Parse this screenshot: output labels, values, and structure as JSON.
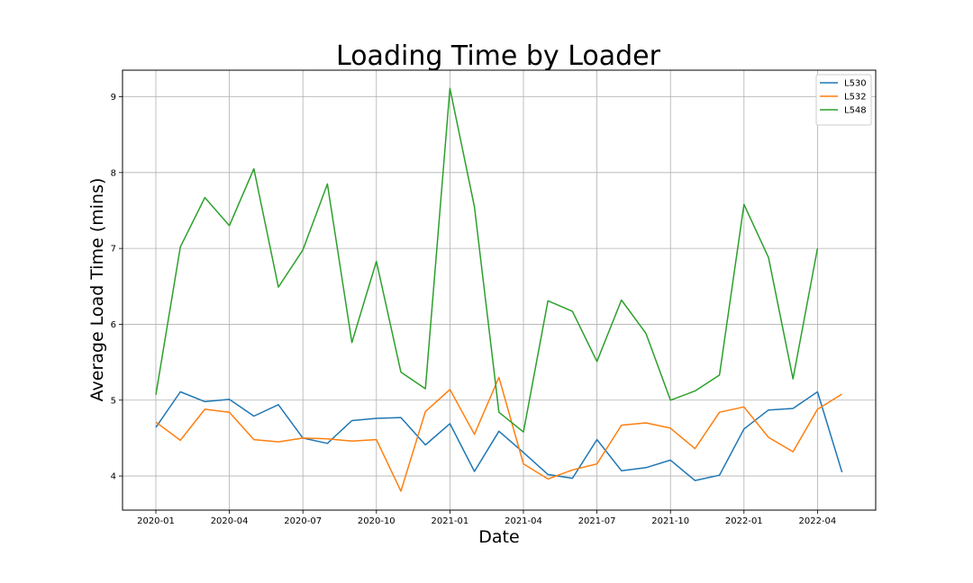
{
  "chart_data": {
    "type": "line",
    "title": "Loading Time by Loader",
    "xlabel": "Date",
    "ylabel": "Average Load Time (mins)",
    "x": [
      "2020-01",
      "2020-02",
      "2020-03",
      "2020-04",
      "2020-05",
      "2020-06",
      "2020-07",
      "2020-08",
      "2020-09",
      "2020-10",
      "2020-11",
      "2020-12",
      "2021-01",
      "2021-02",
      "2021-03",
      "2021-04",
      "2021-05",
      "2021-06",
      "2021-07",
      "2021-08",
      "2021-09",
      "2021-10",
      "2021-11",
      "2021-12",
      "2022-01",
      "2022-02",
      "2022-03",
      "2022-04",
      "2022-05"
    ],
    "x_ticks": [
      "2020-01",
      "2020-04",
      "2020-07",
      "2020-10",
      "2021-01",
      "2021-04",
      "2021-07",
      "2021-10",
      "2022-01",
      "2022-04"
    ],
    "y_ticks": [
      4,
      5,
      6,
      7,
      8,
      9
    ],
    "ylim": [
      3.55,
      9.35
    ],
    "grid": true,
    "legend_position": "top-right",
    "series": [
      {
        "name": "L530",
        "color": "#1f77b4",
        "values": [
          4.64,
          5.11,
          4.98,
          5.01,
          4.79,
          4.94,
          4.5,
          4.43,
          4.73,
          4.76,
          4.77,
          4.41,
          4.69,
          4.06,
          4.59,
          4.31,
          4.02,
          3.97,
          4.48,
          4.07,
          4.11,
          4.21,
          3.94,
          4.01,
          4.62,
          4.87,
          4.89,
          5.11,
          4.05
        ]
      },
      {
        "name": "L532",
        "color": "#ff7f0e",
        "values": [
          4.71,
          4.47,
          4.88,
          4.84,
          4.48,
          4.45,
          4.5,
          4.49,
          4.46,
          4.48,
          3.8,
          4.85,
          5.14,
          4.55,
          5.3,
          4.16,
          3.96,
          4.08,
          4.16,
          4.67,
          4.7,
          4.63,
          4.36,
          4.84,
          4.91,
          4.51,
          4.32,
          4.88,
          5.08
        ]
      },
      {
        "name": "L548",
        "color": "#2ca02c",
        "values": [
          5.07,
          7.02,
          7.67,
          7.3,
          8.05,
          6.49,
          6.98,
          7.85,
          5.76,
          6.83,
          5.37,
          5.15,
          9.11,
          7.55,
          4.84,
          4.58,
          6.31,
          6.17,
          5.51,
          6.32,
          5.88,
          5.0,
          5.12,
          5.33,
          7.58,
          6.88,
          5.28,
          7.0,
          null
        ]
      }
    ]
  }
}
